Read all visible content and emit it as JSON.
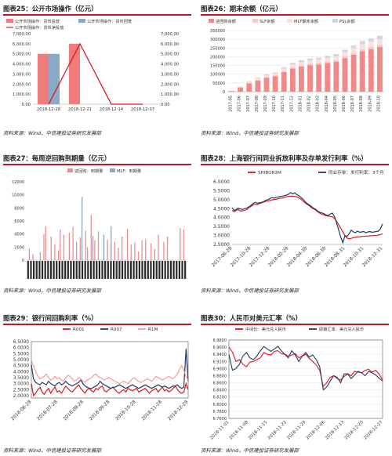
{
  "panels": [
    {
      "key": "p25",
      "title": "图表25：公开市场操作（亿元）",
      "source": "资料来源：Wind，中信建投证券研究发展部"
    },
    {
      "key": "p26",
      "title": "图表26：期末余额（亿元）",
      "source": "资料来源：Wind，中信建投证券研究发展部"
    },
    {
      "key": "p27",
      "title": "图表27：每周逆回购到期量（亿元）",
      "source": "资料来源：Wind，中信建投证券研究发展部"
    },
    {
      "key": "p28",
      "title": "图表28：上海银行间同业拆放利率及存单发行利率（%）",
      "source": "资料来源：Wind，中信建投证券研究发展部"
    },
    {
      "key": "p29",
      "title": "图表29：银行间回购利率（%）",
      "source": "资料来源：Wind，中信建投证券研究发展部"
    },
    {
      "key": "p30",
      "title": "图表30：人民币对美元汇率（%）",
      "source": "资料来源：Wind，中信建投证券研究发展部"
    }
  ],
  "chart_data": [
    {
      "id": "p25",
      "type": "bar",
      "categories": [
        "2018-12-28",
        "2018-12-21",
        "2018-12-14",
        "2018-12-07"
      ],
      "series": [
        {
          "name": "公开市场操作：货币投放",
          "values": [
            5000,
            6000,
            0,
            0
          ],
          "color": "#ef7b7b"
        },
        {
          "name": "公开市场操作：货币回笼",
          "values": [
            5000,
            0,
            0,
            0
          ],
          "color": "#8aa9c9"
        },
        {
          "name": "公开市场操作：货币净投放",
          "values": [
            0,
            6000,
            0,
            0
          ],
          "color": "#e0161c",
          "kind": "line"
        }
      ],
      "yticks": [
        "0.00",
        "1,000.00",
        "2,000.00",
        "3,000.00",
        "4,000.00",
        "5,000.00",
        "6,000.00",
        "7,000.00"
      ],
      "ylim": [
        0,
        7000
      ]
    },
    {
      "id": "p26",
      "type": "bar",
      "categories": [
        "2017-05",
        "2017-06",
        "2017-07",
        "2017-08",
        "2017-09",
        "2017-10",
        "2017-11",
        "2017-12",
        "2018-01",
        "2018-02",
        "2018-03",
        "2018-04",
        "2018-05",
        "2018-06",
        "2018-07",
        "2018-08",
        "2018-09",
        "2018-10"
      ],
      "series": [
        {
          "name": "逆回购余额",
          "color": "#f08a8a"
        },
        {
          "name": "SLF余额",
          "color": "#f7c9c9"
        },
        {
          "name": "MLF期末余额",
          "color": "#fbe0e0"
        },
        {
          "name": "PSL余额",
          "color": "#cfd6df"
        }
      ],
      "totals": [
        5000,
        30000,
        60000,
        80000,
        100000,
        110000,
        140000,
        165000,
        180000,
        190000,
        195000,
        205000,
        215000,
        240000,
        265000,
        290000,
        305000,
        320000
      ],
      "yticks": [
        "0",
        "50000",
        "100000",
        "150000",
        "200000",
        "250000",
        "300000",
        "350000"
      ],
      "ylim": [
        0,
        350000
      ]
    },
    {
      "id": "p27",
      "type": "bar",
      "series": [
        {
          "name": "逆回购：到期量",
          "color": "#f08a8a"
        },
        {
          "name": "MLF：到期量",
          "color": "#8aa9c9"
        }
      ],
      "values": [
        0,
        1800,
        0,
        900,
        0,
        0,
        0,
        1200,
        0,
        4000,
        5200,
        0,
        0,
        3600,
        0,
        2400,
        0,
        1500,
        4700,
        0,
        3900,
        0,
        0,
        4200,
        0,
        5100,
        0,
        2800,
        0,
        3500,
        0,
        0,
        4500,
        2000,
        0,
        6900,
        0,
        3000,
        0,
        4400,
        0,
        0,
        3900,
        0,
        3100,
        0,
        2300,
        0,
        2800,
        0,
        1900,
        0,
        3600,
        0,
        0,
        4800,
        0,
        2400,
        0,
        2700,
        0,
        1300,
        0,
        3000,
        0,
        3200,
        0,
        0,
        2600,
        0,
        1700,
        0,
        3900,
        0,
        0,
        2800,
        0,
        3600,
        0,
        0,
        0,
        0,
        0,
        0,
        4900,
        0,
        4700,
        0
      ],
      "mlf": [
        {
          "i": 30,
          "v": 9700
        },
        {
          "i": 36,
          "v": 3700
        },
        {
          "i": 42,
          "v": 3900
        },
        {
          "i": 46,
          "v": 5200
        }
      ],
      "yticks": [
        "0",
        "2000",
        "4000",
        "6000",
        "8000",
        "10000",
        "12000"
      ],
      "ylim": [
        0,
        12000
      ],
      "xtick_count": 56
    },
    {
      "id": "p28",
      "type": "line",
      "x_labels": [
        "2017-06-28",
        "2017-10-28",
        "2017-12-28",
        "2018-02-28",
        "2018-04-30",
        "2018-06-30",
        "2018-08-31",
        "2018-10-31",
        "2018-12-31"
      ],
      "series": [
        {
          "name": "SHIBOR3M",
          "color": "#e0161c",
          "values": [
            4.4,
            4.33,
            4.4,
            4.45,
            4.36,
            4.38,
            4.4,
            4.45,
            4.55,
            4.62,
            4.7,
            4.75,
            4.72,
            4.78,
            4.82,
            4.86,
            4.9,
            4.92,
            4.95,
            4.99,
            5.0,
            5.02,
            5.05,
            5.08,
            5.1,
            5.13,
            5.17,
            5.18,
            5.2,
            5.19,
            5.18,
            5.16,
            5.1,
            5.02,
            4.92,
            4.82,
            4.73,
            4.65,
            4.55,
            4.48,
            4.42,
            4.32,
            4.24,
            4.18,
            4.15,
            4.1,
            4.08,
            4.06,
            4.05,
            3.95,
            3.8,
            3.6,
            3.4,
            3.2,
            3.0,
            2.85,
            2.82,
            2.84,
            2.88,
            2.9,
            2.92,
            2.93,
            2.95,
            2.95,
            2.96,
            2.97,
            2.98,
            2.99,
            3.0,
            3.0,
            3.02,
            3.05,
            3.1
          ]
        },
        {
          "name": "同业存单：发行利率：3个月",
          "color": "#1f3a64",
          "values": [
            4.55,
            4.4,
            4.46,
            4.52,
            4.48,
            4.45,
            4.5,
            4.52,
            4.6,
            4.68,
            4.78,
            4.85,
            4.8,
            4.82,
            4.85,
            4.88,
            4.96,
            5.0,
            5.05,
            5.12,
            5.08,
            5.12,
            5.15,
            5.18,
            5.2,
            5.22,
            5.26,
            5.3,
            5.4,
            5.32,
            5.38,
            5.28,
            5.22,
            5.12,
            5.02,
            4.88,
            4.78,
            4.7,
            4.62,
            4.52,
            4.46,
            4.36,
            4.3,
            4.26,
            4.22,
            4.14,
            4.12,
            4.2,
            4.25,
            4.05,
            3.7,
            3.3,
            2.9,
            2.6,
            3.0,
            2.95,
            3.1,
            3.3,
            3.2,
            3.15,
            3.25,
            3.18,
            3.2,
            3.22,
            3.15,
            3.2,
            3.22,
            3.18,
            3.2,
            3.22,
            3.25,
            3.38,
            3.65
          ]
        }
      ],
      "yticks": [
        "2.5000",
        "3.0000",
        "3.5000",
        "4.0000",
        "4.5000",
        "5.0000",
        "5.5000",
        "6.0000"
      ],
      "ylim": [
        2.5,
        6.0
      ]
    },
    {
      "id": "p29",
      "type": "line",
      "x_labels": [
        "2018-06-28",
        "2018-07-28",
        "2018-08-28",
        "2018-09-28",
        "2018-10-28",
        "2018-11-28",
        "2018-12-28"
      ],
      "series": [
        {
          "name": "R001",
          "color": "#e0161c",
          "values": [
            3.0,
            2.0,
            2.2,
            2.5,
            2.7,
            2.3,
            2.1,
            2.4,
            2.6,
            2.2,
            2.5,
            2.7,
            2.3,
            2.4,
            2.2,
            2.5,
            2.8,
            2.6,
            2.4,
            2.3,
            2.5,
            2.7,
            2.9,
            2.6,
            2.4,
            2.2,
            2.5,
            2.6,
            2.4,
            2.3,
            2.6,
            2.5,
            2.7,
            2.8,
            2.4,
            2.3,
            2.5,
            2.6,
            2.7,
            2.5,
            2.3,
            2.2,
            2.4,
            2.5,
            2.3,
            2.6,
            2.5,
            2.4,
            2.5,
            2.6,
            2.3,
            2.4,
            2.5,
            2.6,
            2.4,
            2.2,
            2.4,
            2.5,
            2.6,
            2.3,
            2.5,
            2.7,
            2.4,
            2.5,
            2.3,
            2.4,
            2.6,
            2.8,
            2.5,
            2.3,
            2.2,
            2.3,
            3.0,
            2.5
          ]
        },
        {
          "name": "R007",
          "color": "#1f3a64",
          "values": [
            4.6,
            3.4,
            3.1,
            3.0,
            2.9,
            3.1,
            3.0,
            2.9,
            3.2,
            3.0,
            2.9,
            2.8,
            3.0,
            3.1,
            2.9,
            3.0,
            3.2,
            3.0,
            2.9,
            2.8,
            2.9,
            3.0,
            3.1,
            3.3,
            3.0,
            2.8,
            2.7,
            2.6,
            2.6,
            2.7,
            2.8,
            2.9,
            3.2,
            3.0,
            2.9,
            2.8,
            2.7,
            2.6,
            2.7,
            2.7,
            2.8,
            2.9,
            2.8,
            2.7,
            2.6,
            2.7,
            2.8,
            2.9,
            2.8,
            2.7,
            2.6,
            2.7,
            2.8,
            2.9,
            2.8,
            2.7,
            2.6,
            2.7,
            2.8,
            2.9,
            2.8,
            2.7,
            2.8,
            2.7,
            2.6,
            2.7,
            2.8,
            2.8,
            2.9,
            2.7,
            2.6,
            2.7,
            5.9,
            3.2
          ]
        },
        {
          "name": "R1M",
          "color": "#f39a9a",
          "values": [
            4.9,
            4.5,
            4.0,
            3.6,
            3.4,
            3.5,
            3.6,
            3.8,
            3.5,
            3.3,
            3.4,
            3.6,
            3.4,
            3.5,
            3.3,
            3.2,
            3.5,
            3.7,
            3.6,
            3.4,
            3.2,
            3.3,
            3.5,
            3.4,
            3.2,
            3.1,
            3.3,
            3.4,
            3.5,
            3.7,
            3.8,
            3.6,
            3.5,
            3.4,
            3.3,
            3.4,
            3.5,
            3.4,
            3.3,
            3.2,
            3.1,
            3.0,
            3.1,
            3.2,
            3.1,
            3.0,
            3.2,
            3.4,
            3.5,
            3.3,
            3.2,
            3.1,
            3.2,
            3.3,
            3.4,
            3.3,
            3.2,
            3.4,
            3.6,
            3.5,
            3.4,
            3.3,
            3.4,
            3.5,
            3.6,
            3.5,
            3.4,
            3.6,
            3.8,
            4.2,
            4.5,
            4.1,
            3.6,
            3.3
          ]
        }
      ],
      "yticks": [
        "2.0000",
        "2.5000",
        "3.0000",
        "3.5000",
        "4.0000",
        "4.5000",
        "5.0000",
        "5.5000",
        "6.0000",
        "6.5000"
      ],
      "ylim": [
        1.8,
        6.5
      ]
    },
    {
      "id": "p30",
      "type": "line",
      "x_labels": [
        "2018-11-01",
        "2018-11-08",
        "2018-11-15",
        "2018-11-22",
        "2018-11-29",
        "2018-12-06",
        "2018-12-13",
        "2018-12-20",
        "2018-12-27"
      ],
      "series": [
        {
          "name": "中间价：美元兑人民币",
          "color": "#e0161c",
          "values": [
            6.96,
            6.946,
            6.92,
            6.925,
            6.912,
            6.905,
            6.918,
            6.92,
            6.925,
            6.93,
            6.945,
            6.94,
            6.938,
            6.948,
            6.95,
            6.942,
            6.94,
            6.935,
            6.938,
            6.942,
            6.93,
            6.935,
            6.94,
            6.928,
            6.92,
            6.91,
            6.895,
            6.85,
            6.86,
            6.875,
            6.88,
            6.872,
            6.868,
            6.878,
            6.885,
            6.88,
            6.892,
            6.89,
            6.888,
            6.895,
            6.898,
            6.89,
            6.895,
            6.885,
            6.868
          ]
        },
        {
          "name": "即期汇率：美元兑人民币",
          "color": "#1f3a64",
          "values": [
            6.94,
            6.895,
            6.9,
            6.912,
            6.935,
            6.945,
            6.93,
            6.925,
            6.935,
            6.95,
            6.962,
            6.955,
            6.948,
            6.955,
            6.962,
            6.95,
            6.94,
            6.93,
            6.95,
            6.938,
            6.92,
            6.935,
            6.945,
            6.932,
            6.938,
            6.925,
            6.905,
            6.84,
            6.848,
            6.865,
            6.88,
            6.875,
            6.86,
            6.885,
            6.885,
            6.872,
            6.882,
            6.892,
            6.888,
            6.88,
            6.892,
            6.888,
            6.882,
            6.873,
            6.865
          ]
        }
      ],
      "yticks": [
        "6.7600",
        "6.7800",
        "6.8000",
        "6.8200",
        "6.8400",
        "6.8600",
        "6.8800",
        "6.9000",
        "6.9200",
        "6.9400",
        "6.9600",
        "6.9800"
      ],
      "ylim": [
        6.76,
        6.98
      ]
    }
  ]
}
